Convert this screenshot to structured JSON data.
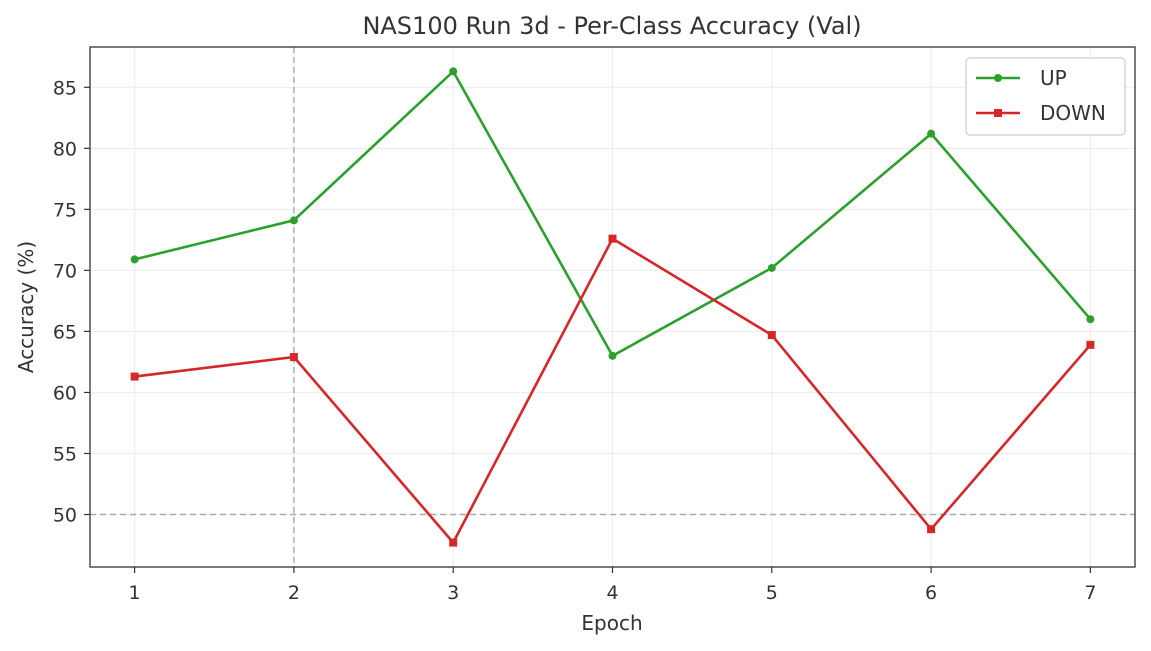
{
  "chart_data": {
    "type": "line",
    "title": "NAS100 Run 3d - Per-Class Accuracy (Val)",
    "xlabel": "Epoch",
    "ylabel": "Accuracy (%)",
    "x": [
      1,
      2,
      3,
      4,
      5,
      6,
      7
    ],
    "xlim": [
      0.72,
      7.28
    ],
    "ylim": [
      45.7,
      88.3
    ],
    "xticks": [
      1,
      2,
      3,
      4,
      5,
      6,
      7
    ],
    "yticks": [
      50,
      55,
      60,
      65,
      70,
      75,
      80,
      85
    ],
    "grid": true,
    "legend_position": "top-right",
    "series": [
      {
        "name": "UP",
        "color": "#2ca02c",
        "marker": "circle",
        "values": [
          70.9,
          74.1,
          86.3,
          63.0,
          70.2,
          81.2,
          66.0
        ]
      },
      {
        "name": "DOWN",
        "color": "#d62728",
        "marker": "square",
        "values": [
          61.3,
          62.9,
          47.7,
          72.6,
          64.7,
          48.8,
          63.9
        ]
      }
    ],
    "reference_lines": [
      {
        "axis": "y",
        "value": 50,
        "style": "dashed",
        "color": "#aaaaaa"
      },
      {
        "axis": "x",
        "value": 2,
        "style": "dashed",
        "color": "#aaaaaa"
      }
    ]
  }
}
